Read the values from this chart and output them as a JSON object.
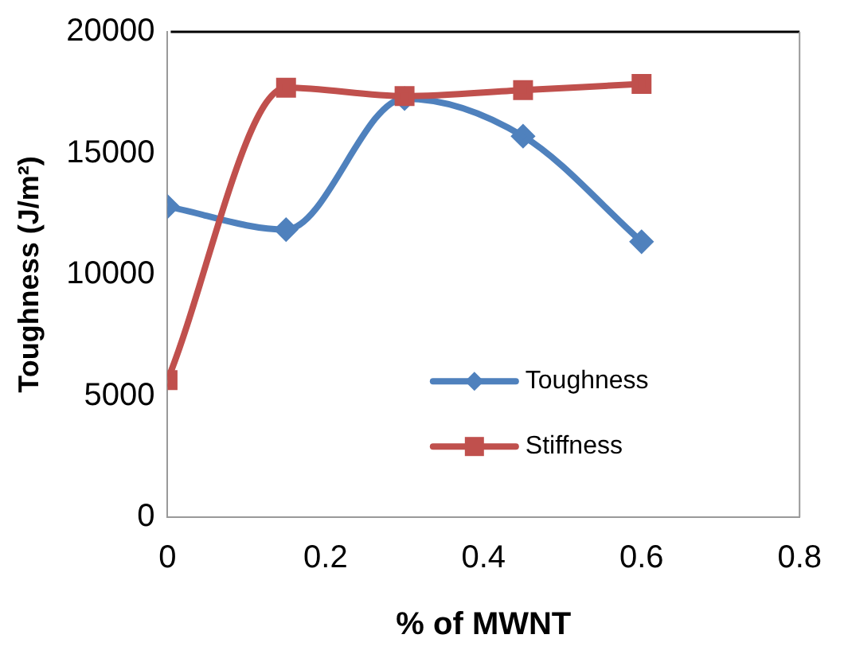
{
  "chart_data": {
    "type": "line",
    "xlabel": "% of MWNT",
    "ylabel": "Toughness (J/m²)",
    "x": [
      0,
      0.15,
      0.3,
      0.45,
      0.6
    ],
    "series": [
      {
        "name": "Toughness",
        "color": "#4f81bd",
        "values": [
          12800,
          11850,
          17250,
          15700,
          11350
        ],
        "marker": "diamond"
      },
      {
        "name": "Stiffness",
        "color": "#c0504d",
        "values": [
          5650,
          17700,
          17350,
          17600,
          17850
        ],
        "marker": "square"
      }
    ],
    "xlim": [
      0,
      0.8
    ],
    "xticks": [
      0,
      0.2,
      0.4,
      0.6,
      0.8
    ],
    "ylim": [
      0,
      20000
    ],
    "yticks": [
      0,
      5000,
      10000,
      15000,
      20000
    ],
    "grid": false,
    "legend": "bottom right"
  }
}
